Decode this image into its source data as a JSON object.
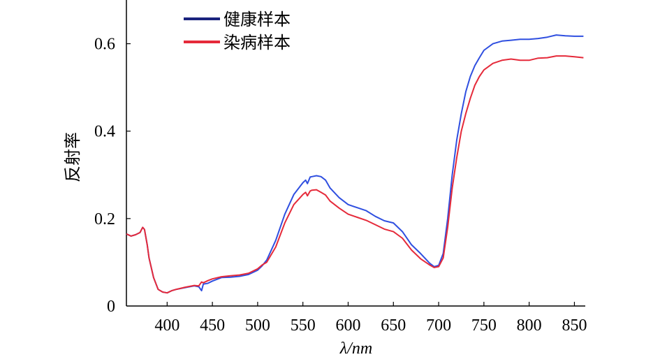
{
  "chart_data": {
    "type": "line",
    "xlabel": "λ/nm",
    "ylabel": "反射率",
    "xlim": [
      355,
      862
    ],
    "ylim": [
      0,
      0.7
    ],
    "x_ticks": [
      "400",
      "450",
      "500",
      "550",
      "600",
      "650",
      "700",
      "750",
      "800",
      "850"
    ],
    "y_ticks": [
      "0",
      "0.2",
      "0.4",
      "0.6"
    ],
    "grid": false,
    "legend_position": "top-left",
    "x": [
      355,
      360,
      365,
      370,
      373,
      375,
      378,
      380,
      385,
      390,
      395,
      400,
      405,
      410,
      420,
      430,
      435,
      438,
      440,
      445,
      450,
      460,
      470,
      480,
      490,
      500,
      505,
      510,
      520,
      530,
      540,
      550,
      553,
      555,
      558,
      560,
      565,
      570,
      575,
      580,
      590,
      600,
      610,
      620,
      630,
      640,
      650,
      660,
      670,
      680,
      690,
      695,
      700,
      705,
      710,
      715,
      720,
      725,
      730,
      735,
      740,
      745,
      750,
      760,
      770,
      780,
      790,
      800,
      810,
      820,
      830,
      840,
      850,
      860
    ],
    "series": [
      {
        "name": "健康样本",
        "color": "#2f4fe0",
        "values": [
          0.165,
          0.16,
          0.163,
          0.168,
          0.18,
          0.175,
          0.14,
          0.11,
          0.065,
          0.038,
          0.032,
          0.03,
          0.035,
          0.038,
          0.042,
          0.046,
          0.044,
          0.035,
          0.05,
          0.052,
          0.057,
          0.065,
          0.066,
          0.068,
          0.072,
          0.082,
          0.092,
          0.105,
          0.15,
          0.21,
          0.255,
          0.282,
          0.288,
          0.28,
          0.295,
          0.296,
          0.298,
          0.296,
          0.288,
          0.27,
          0.248,
          0.232,
          0.225,
          0.218,
          0.205,
          0.195,
          0.19,
          0.17,
          0.14,
          0.12,
          0.098,
          0.09,
          0.093,
          0.12,
          0.2,
          0.3,
          0.38,
          0.44,
          0.49,
          0.525,
          0.55,
          0.568,
          0.585,
          0.6,
          0.606,
          0.608,
          0.61,
          0.61,
          0.612,
          0.615,
          0.62,
          0.618,
          0.617,
          0.617
        ]
      },
      {
        "name": "染病样本",
        "color": "#e52a3a",
        "values": [
          0.165,
          0.16,
          0.163,
          0.168,
          0.18,
          0.175,
          0.14,
          0.11,
          0.065,
          0.038,
          0.032,
          0.03,
          0.035,
          0.038,
          0.043,
          0.047,
          0.046,
          0.055,
          0.053,
          0.058,
          0.062,
          0.067,
          0.069,
          0.071,
          0.075,
          0.085,
          0.094,
          0.1,
          0.135,
          0.19,
          0.232,
          0.255,
          0.26,
          0.252,
          0.263,
          0.265,
          0.266,
          0.26,
          0.254,
          0.24,
          0.224,
          0.21,
          0.203,
          0.196,
          0.186,
          0.176,
          0.17,
          0.155,
          0.128,
          0.108,
          0.094,
          0.088,
          0.09,
          0.11,
          0.18,
          0.27,
          0.34,
          0.4,
          0.44,
          0.475,
          0.505,
          0.525,
          0.54,
          0.555,
          0.562,
          0.565,
          0.562,
          0.562,
          0.567,
          0.568,
          0.572,
          0.572,
          0.57,
          0.568
        ]
      }
    ]
  }
}
